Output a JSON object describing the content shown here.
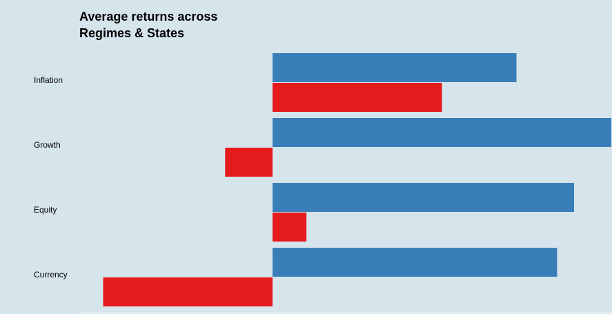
{
  "chart_data": {
    "type": "bar",
    "orientation": "horizontal",
    "title_lines": [
      "Average returns across",
      "Regimes & States"
    ],
    "categories": [
      "Inflation",
      "Growth",
      "Equity",
      "Currency"
    ],
    "series": [
      {
        "color": "#3a7eb9",
        "values": [
          0.72,
          1.0,
          0.89,
          0.84
        ]
      },
      {
        "color": "#e41a1c",
        "values": [
          0.5,
          -0.14,
          0.1,
          -0.5
        ]
      }
    ],
    "xlim": [
      -0.8,
      1.0
    ],
    "grid": false,
    "legend": "none"
  }
}
